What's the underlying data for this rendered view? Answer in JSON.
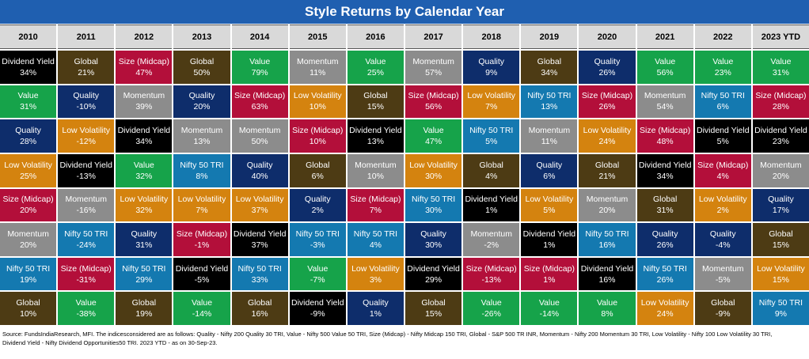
{
  "title": "Style Returns by Calendar Year",
  "source_note": "Source: FundsIndiaResearch, MFI. The indicesconsidered are as follows: Quality - Nifty 200 Quality 30 TRI, Value - Nifty 500 Value 50 TRI, Size (Midcap) - Nifty Midcap 150 TRI, Global - S&P 500 TR INR, Momentum - Nifty 200 Momentum 30 TRI, Low Volatility - Nifty 100 Low Volatility 30 TRI, Dividend Yield - Nifty Dividend Opportunities50 TRI. 2023 YTD - as on 30-Sep-23.",
  "colors": {
    "Dividend Yield": "#000000",
    "Global": "#4d3b14",
    "Size (Midcap)": "#b30f3a",
    "Value": "#16a34a",
    "Momentum": "#8c8c8c",
    "Quality": "#0e2d6b",
    "Low Volatility": "#d4830f",
    "Nifty 50 TRI": "#1479b0"
  },
  "chart_data": {
    "type": "table",
    "title": "Style Returns by Calendar Year",
    "years": [
      "2010",
      "2011",
      "2012",
      "2013",
      "2014",
      "2015",
      "2016",
      "2017",
      "2018",
      "2019",
      "2020",
      "2021",
      "2022",
      "2023 YTD"
    ],
    "columns": [
      [
        [
          "Dividend Yield",
          "34%"
        ],
        [
          "Value",
          "31%"
        ],
        [
          "Quality",
          "28%"
        ],
        [
          "Low Volatility",
          "25%"
        ],
        [
          "Size (Midcap)",
          "20%"
        ],
        [
          "Momentum",
          "20%"
        ],
        [
          "Nifty 50 TRI",
          "19%"
        ],
        [
          "Global",
          "10%"
        ]
      ],
      [
        [
          "Global",
          "21%"
        ],
        [
          "Quality",
          "-10%"
        ],
        [
          "Low Volatility",
          "-12%"
        ],
        [
          "Dividend Yield",
          "-13%"
        ],
        [
          "Momentum",
          "-16%"
        ],
        [
          "Nifty 50 TRI",
          "-24%"
        ],
        [
          "Size (Midcap)",
          "-31%"
        ],
        [
          "Value",
          "-38%"
        ]
      ],
      [
        [
          "Size (Midcap)",
          "47%"
        ],
        [
          "Momentum",
          "39%"
        ],
        [
          "Dividend Yield",
          "34%"
        ],
        [
          "Value",
          "32%"
        ],
        [
          "Low Volatility",
          "32%"
        ],
        [
          "Quality",
          "31%"
        ],
        [
          "Nifty 50 TRI",
          "29%"
        ],
        [
          "Global",
          "19%"
        ]
      ],
      [
        [
          "Global",
          "50%"
        ],
        [
          "Quality",
          "20%"
        ],
        [
          "Momentum",
          "13%"
        ],
        [
          "Nifty 50 TRI",
          "8%"
        ],
        [
          "Low Volatility",
          "7%"
        ],
        [
          "Size (Midcap)",
          "-1%"
        ],
        [
          "Dividend Yield",
          "-5%"
        ],
        [
          "Value",
          "-14%"
        ]
      ],
      [
        [
          "Value",
          "79%"
        ],
        [
          "Size (Midcap)",
          "63%"
        ],
        [
          "Momentum",
          "50%"
        ],
        [
          "Quality",
          "40%"
        ],
        [
          "Low Volatility",
          "37%"
        ],
        [
          "Dividend Yield",
          "37%"
        ],
        [
          "Nifty 50 TRI",
          "33%"
        ],
        [
          "Global",
          "16%"
        ]
      ],
      [
        [
          "Momentum",
          "11%"
        ],
        [
          "Low Volatility",
          "10%"
        ],
        [
          "Size (Midcap)",
          "10%"
        ],
        [
          "Global",
          "6%"
        ],
        [
          "Quality",
          "2%"
        ],
        [
          "Nifty 50 TRI",
          "-3%"
        ],
        [
          "Value",
          "-7%"
        ],
        [
          "Dividend Yield",
          "-9%"
        ]
      ],
      [
        [
          "Value",
          "25%"
        ],
        [
          "Global",
          "15%"
        ],
        [
          "Dividend Yield",
          "13%"
        ],
        [
          "Momentum",
          "10%"
        ],
        [
          "Size (Midcap)",
          "7%"
        ],
        [
          "Nifty 50 TRI",
          "4%"
        ],
        [
          "Low Volatility",
          "3%"
        ],
        [
          "Quality",
          "1%"
        ]
      ],
      [
        [
          "Momentum",
          "57%"
        ],
        [
          "Size (Midcap)",
          "56%"
        ],
        [
          "Value",
          "47%"
        ],
        [
          "Low Volatility",
          "30%"
        ],
        [
          "Nifty 50 TRI",
          "30%"
        ],
        [
          "Quality",
          "30%"
        ],
        [
          "Dividend Yield",
          "29%"
        ],
        [
          "Global",
          "15%"
        ]
      ],
      [
        [
          "Quality",
          "9%"
        ],
        [
          "Low Volatility",
          "7%"
        ],
        [
          "Nifty 50 TRI",
          "5%"
        ],
        [
          "Global",
          "4%"
        ],
        [
          "Dividend Yield",
          "1%"
        ],
        [
          "Momentum",
          "-2%"
        ],
        [
          "Size (Midcap)",
          "-13%"
        ],
        [
          "Value",
          "-26%"
        ]
      ],
      [
        [
          "Global",
          "34%"
        ],
        [
          "Nifty 50 TRI",
          "13%"
        ],
        [
          "Momentum",
          "11%"
        ],
        [
          "Quality",
          "6%"
        ],
        [
          "Low Volatility",
          "5%"
        ],
        [
          "Dividend Yield",
          "1%"
        ],
        [
          "Size (Midcap)",
          "1%"
        ],
        [
          "Value",
          "-14%"
        ]
      ],
      [
        [
          "Quality",
          "26%"
        ],
        [
          "Size (Midcap)",
          "26%"
        ],
        [
          "Low Volatility",
          "24%"
        ],
        [
          "Global",
          "21%"
        ],
        [
          "Momentum",
          "20%"
        ],
        [
          "Nifty 50 TRI",
          "16%"
        ],
        [
          "Dividend Yield",
          "16%"
        ],
        [
          "Value",
          "8%"
        ]
      ],
      [
        [
          "Value",
          "56%"
        ],
        [
          "Momentum",
          "54%"
        ],
        [
          "Size (Midcap)",
          "48%"
        ],
        [
          "Dividend Yield",
          "34%"
        ],
        [
          "Global",
          "31%"
        ],
        [
          "Quality",
          "26%"
        ],
        [
          "Nifty 50 TRI",
          "26%"
        ],
        [
          "Low Volatility",
          "24%"
        ]
      ],
      [
        [
          "Value",
          "23%"
        ],
        [
          "Nifty 50 TRI",
          "6%"
        ],
        [
          "Dividend Yield",
          "5%"
        ],
        [
          "Size (Midcap)",
          "4%"
        ],
        [
          "Low Volatility",
          "2%"
        ],
        [
          "Quality",
          "-4%"
        ],
        [
          "Momentum",
          "-5%"
        ],
        [
          "Global",
          "-9%"
        ]
      ],
      [
        [
          "Value",
          "31%"
        ],
        [
          "Size (Midcap)",
          "28%"
        ],
        [
          "Dividend Yield",
          "23%"
        ],
        [
          "Momentum",
          "20%"
        ],
        [
          "Quality",
          "17%"
        ],
        [
          "Global",
          "15%"
        ],
        [
          "Low Volatility",
          "15%"
        ],
        [
          "Nifty 50 TRI",
          "9%"
        ]
      ]
    ]
  }
}
